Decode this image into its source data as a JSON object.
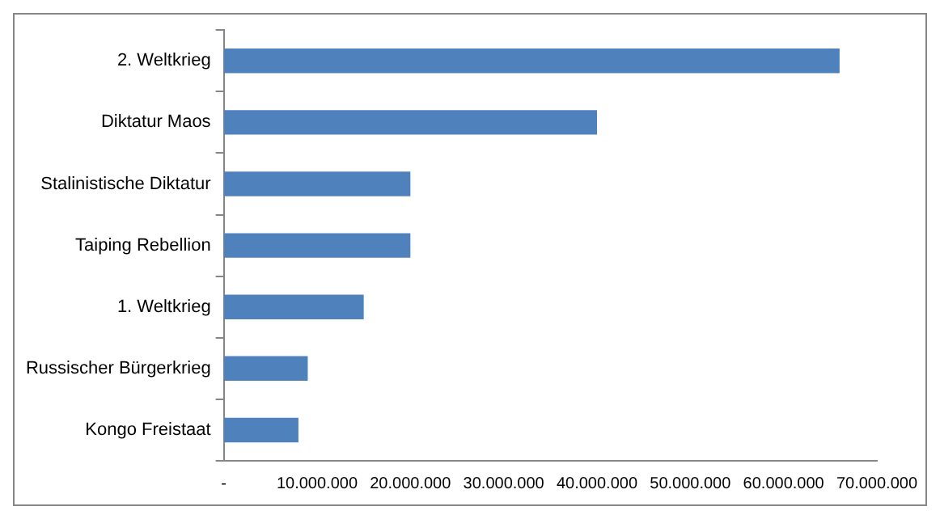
{
  "chart_data": {
    "type": "bar",
    "orientation": "horizontal",
    "categories": [
      "2. Weltkrieg",
      "Diktatur Maos",
      "Stalinistische Diktatur",
      "Taiping Rebellion",
      "1. Weltkrieg",
      "Russischer Bürgerkrieg",
      "Kongo Freistaat"
    ],
    "values": [
      66000000,
      40000000,
      20000000,
      20000000,
      15000000,
      9000000,
      8000000
    ],
    "color": "#4f81bd",
    "xlim": [
      0,
      70000000
    ],
    "xticks": [
      {
        "value": 0,
        "label": "-"
      },
      {
        "value": 10000000,
        "label": "10.000.000"
      },
      {
        "value": 20000000,
        "label": "20.000.000"
      },
      {
        "value": 30000000,
        "label": "30.000.000"
      },
      {
        "value": 40000000,
        "label": "40.000.000"
      },
      {
        "value": 50000000,
        "label": "50.000.000"
      },
      {
        "value": 60000000,
        "label": "60.000.000"
      },
      {
        "value": 70000000,
        "label": "70.000.000"
      }
    ],
    "grid": false,
    "legend": false
  }
}
